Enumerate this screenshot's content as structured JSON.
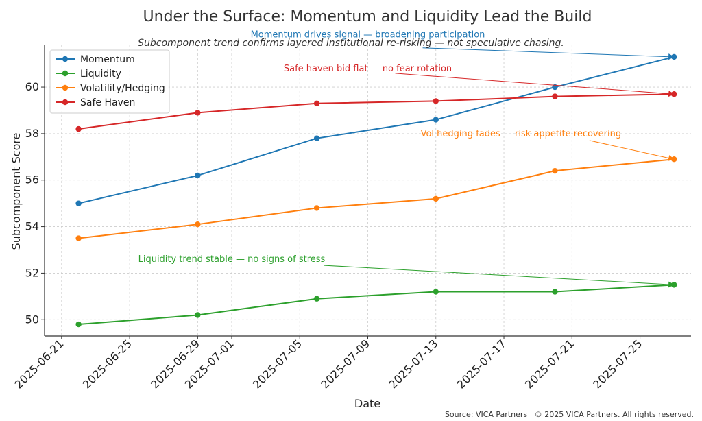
{
  "chart_data": {
    "type": "line",
    "title": "Under the Surface: Momentum and Liquidity Lead the Build",
    "subtitle": "Subcomponent trend confirms layered institutional re-risking — not speculative chasing.",
    "xlabel": "Date",
    "ylabel": "Subcomponent Score",
    "x": [
      "2025-06-22",
      "2025-06-29",
      "2025-07-06",
      "2025-07-13",
      "2025-07-20",
      "2025-07-27"
    ],
    "x_ticks": [
      "2025-06-21",
      "2025-06-25",
      "2025-06-29",
      "2025-07-01",
      "2025-07-05",
      "2025-07-09",
      "2025-07-13",
      "2025-07-17",
      "2025-07-21",
      "2025-07-25"
    ],
    "y_ticks": [
      50,
      52,
      54,
      56,
      58,
      60
    ],
    "xlim": [
      "2025-06-20",
      "2025-07-28"
    ],
    "ylim": [
      49.3,
      61.8
    ],
    "grid": true,
    "legend_position": "top-left",
    "series": [
      {
        "name": "Momentum",
        "color": "#1f77b4",
        "values": [
          55.0,
          56.2,
          57.8,
          58.6,
          60.0,
          61.3
        ]
      },
      {
        "name": "Liquidity",
        "color": "#2ca02c",
        "values": [
          49.8,
          50.2,
          50.9,
          51.2,
          51.2,
          51.5
        ]
      },
      {
        "name": "Volatility/Hedging",
        "color": "#ff7f0e",
        "values": [
          53.5,
          54.1,
          54.8,
          55.2,
          56.4,
          56.9
        ]
      },
      {
        "name": "Safe Haven",
        "color": "#d62728",
        "values": [
          58.2,
          58.9,
          59.3,
          59.4,
          59.6,
          59.7
        ]
      }
    ],
    "annotations": [
      {
        "text": "Momentum drives signal — broadening participation",
        "color": "#1f77b4",
        "text_x": "2025-07-09",
        "text_y": 62.25,
        "target_x": "2025-07-27",
        "target_y": 61.3
      },
      {
        "text": "Safe haven bid flat — no fear rotation",
        "color": "#d62728",
        "text_x": "2025-07-09",
        "text_y": 60.8,
        "target_x": "2025-07-27",
        "target_y": 59.7
      },
      {
        "text": "Vol hedging fades — risk appetite recovering",
        "color": "#ff7f0e",
        "text_x": "2025-07-18",
        "text_y": 58.0,
        "target_x": "2025-07-27",
        "target_y": 56.9
      },
      {
        "text": "Liquidity trend stable — no signs of stress",
        "color": "#2ca02c",
        "text_x": "2025-07-01",
        "text_y": 52.6,
        "target_x": "2025-07-27",
        "target_y": 51.5
      }
    ]
  },
  "footer": {
    "source": "Source: VICA Partners | © 2025 VICA Partners. All rights reserved."
  }
}
